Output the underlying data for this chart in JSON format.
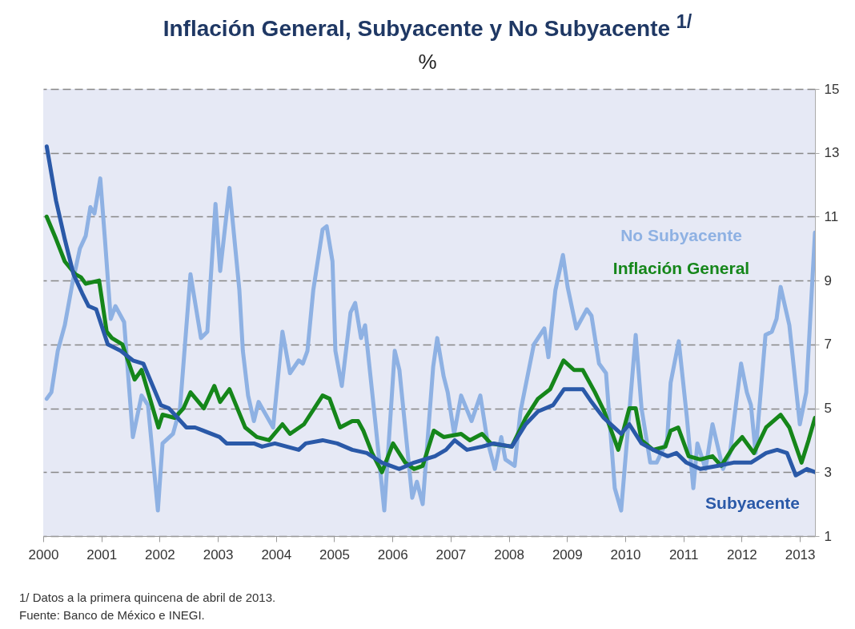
{
  "chart_data": {
    "type": "line",
    "title": "Inflación General, Subyacente y No Subyacente $^{1/}$",
    "subtitle": "%",
    "xlim": [
      2000,
      2013.26
    ],
    "xticks": [
      2000,
      2001,
      2002,
      2003,
      2004,
      2005,
      2006,
      2007,
      2008,
      2009,
      2010,
      2011,
      2012,
      2013
    ],
    "ylim": [
      1,
      15
    ],
    "yticks": [
      1,
      3,
      5,
      7,
      9,
      11,
      13,
      15
    ],
    "grid": "y",
    "legend": false,
    "annotations": [
      "1/ Datos a la primera quincena de abril de 2013.",
      "Fuente: Banco de México e INEGI."
    ],
    "series": [
      {
        "name": "No Subyacente",
        "color": "#8eb1e3",
        "x": [
          2000.06,
          2000.14,
          2000.25,
          2000.37,
          2000.5,
          2000.63,
          2000.73,
          2000.81,
          2000.88,
          2000.98,
          2001.06,
          2001.16,
          2001.24,
          2001.39,
          2001.54,
          2001.69,
          2001.8,
          2001.97,
          2002.05,
          2002.23,
          2002.35,
          2002.53,
          2002.71,
          2002.82,
          2002.96,
          2003.04,
          2003.2,
          2003.37,
          2003.43,
          2003.52,
          2003.62,
          2003.7,
          2003.95,
          2004.11,
          2004.24,
          2004.39,
          2004.46,
          2004.54,
          2004.64,
          2004.8,
          2004.87,
          2004.97,
          2005.02,
          2005.13,
          2005.28,
          2005.36,
          2005.46,
          2005.53,
          2005.71,
          2005.86,
          2006.04,
          2006.12,
          2006.34,
          2006.42,
          2006.52,
          2006.7,
          2006.77,
          2006.88,
          2006.95,
          2007.06,
          2007.18,
          2007.36,
          2007.51,
          2007.63,
          2007.76,
          2007.87,
          2007.94,
          2008.1,
          2008.2,
          2008.43,
          2008.61,
          2008.68,
          2008.8,
          2008.93,
          2009.01,
          2009.16,
          2009.34,
          2009.42,
          2009.55,
          2009.67,
          2009.82,
          2009.93,
          2010.03,
          2010.18,
          2010.28,
          2010.43,
          2010.54,
          2010.72,
          2010.78,
          2010.92,
          2011.06,
          2011.17,
          2011.24,
          2011.38,
          2011.5,
          2011.68,
          2011.8,
          2011.99,
          2012.09,
          2012.16,
          2012.24,
          2012.41,
          2012.52,
          2012.6,
          2012.67,
          2012.82,
          2013.0,
          2013.11,
          2013.26
        ],
        "values": [
          5.3,
          5.5,
          6.8,
          7.6,
          8.9,
          10.0,
          10.4,
          11.3,
          11.1,
          12.2,
          10.3,
          7.8,
          8.2,
          7.7,
          4.1,
          5.4,
          5.1,
          1.8,
          3.9,
          4.2,
          5.0,
          9.2,
          7.2,
          7.4,
          11.4,
          9.3,
          11.9,
          8.7,
          6.8,
          5.4,
          4.6,
          5.2,
          4.4,
          7.4,
          6.1,
          6.5,
          6.4,
          6.8,
          8.7,
          10.6,
          10.7,
          9.6,
          6.8,
          5.7,
          8.0,
          8.3,
          7.2,
          7.6,
          4.5,
          1.8,
          6.8,
          6.2,
          2.2,
          2.7,
          2.0,
          6.3,
          7.2,
          6.0,
          5.5,
          4.2,
          5.4,
          4.6,
          5.4,
          4.0,
          3.1,
          4.1,
          3.4,
          3.2,
          4.9,
          7.0,
          7.5,
          6.6,
          8.7,
          9.8,
          8.8,
          7.5,
          8.1,
          7.9,
          6.4,
          6.1,
          2.5,
          1.8,
          4.0,
          7.3,
          5.0,
          3.3,
          3.3,
          4.0,
          5.8,
          7.1,
          4.7,
          2.5,
          3.9,
          3.1,
          4.5,
          3.1,
          3.6,
          6.4,
          5.5,
          5.1,
          3.6,
          7.3,
          7.4,
          7.8,
          8.8,
          7.6,
          4.5,
          5.5,
          10.5
        ]
      },
      {
        "name": "Inflación General",
        "color": "#15861a",
        "x": [
          2000.06,
          2000.22,
          2000.37,
          2000.55,
          2000.65,
          2000.73,
          2000.96,
          2001.09,
          2001.18,
          2001.36,
          2001.57,
          2001.69,
          2001.98,
          2002.05,
          2002.26,
          2002.41,
          2002.53,
          2002.76,
          2002.94,
          2003.04,
          2003.2,
          2003.47,
          2003.67,
          2003.88,
          2004.11,
          2004.24,
          2004.48,
          2004.8,
          2004.92,
          2005.1,
          2005.31,
          2005.41,
          2005.5,
          2005.65,
          2005.82,
          2006.01,
          2006.22,
          2006.37,
          2006.52,
          2006.71,
          2006.88,
          2007.18,
          2007.33,
          2007.54,
          2007.69,
          2008.05,
          2008.29,
          2008.5,
          2008.71,
          2008.94,
          2009.12,
          2009.27,
          2009.48,
          2009.64,
          2009.88,
          2010.07,
          2010.18,
          2010.28,
          2010.48,
          2010.69,
          2010.78,
          2010.91,
          2011.09,
          2011.29,
          2011.5,
          2011.65,
          2011.86,
          2012.01,
          2012.21,
          2012.42,
          2012.67,
          2012.82,
          2013.03,
          2013.15,
          2013.26
        ],
        "values": [
          11.0,
          10.3,
          9.6,
          9.2,
          9.1,
          8.9,
          9.0,
          7.4,
          7.2,
          7.0,
          5.9,
          6.2,
          4.4,
          4.8,
          4.7,
          5.0,
          5.5,
          5.0,
          5.7,
          5.2,
          5.6,
          4.4,
          4.1,
          4.0,
          4.5,
          4.2,
          4.5,
          5.4,
          5.3,
          4.4,
          4.6,
          4.6,
          4.3,
          3.6,
          3.0,
          3.9,
          3.3,
          3.1,
          3.2,
          4.3,
          4.1,
          4.2,
          4.0,
          4.2,
          3.9,
          3.8,
          4.7,
          5.3,
          5.6,
          6.5,
          6.2,
          6.2,
          5.5,
          4.9,
          3.7,
          5.0,
          5.0,
          4.0,
          3.7,
          3.8,
          4.3,
          4.4,
          3.5,
          3.4,
          3.5,
          3.2,
          3.8,
          4.1,
          3.6,
          4.4,
          4.8,
          4.4,
          3.3,
          4.0,
          4.7
        ]
      },
      {
        "name": "Subyacente",
        "color": "#2a59a8",
        "x": [
          2000.06,
          2000.22,
          2000.37,
          2000.52,
          2000.67,
          2000.78,
          2000.91,
          2001.11,
          2001.33,
          2001.54,
          2001.72,
          2002.02,
          2002.16,
          2002.46,
          2002.61,
          2003.03,
          2003.15,
          2003.43,
          2003.62,
          2003.76,
          2003.98,
          2004.39,
          2004.51,
          2004.8,
          2005.05,
          2005.31,
          2005.56,
          2005.82,
          2006.12,
          2006.37,
          2006.73,
          2006.92,
          2007.07,
          2007.28,
          2007.54,
          2007.74,
          2008.05,
          2008.29,
          2008.5,
          2008.76,
          2008.95,
          2009.27,
          2009.42,
          2009.63,
          2009.93,
          2010.07,
          2010.28,
          2010.48,
          2010.73,
          2010.88,
          2011.05,
          2011.29,
          2011.6,
          2011.86,
          2012.16,
          2012.42,
          2012.61,
          2012.78,
          2012.93,
          2013.12,
          2013.26
        ],
        "values": [
          13.2,
          11.5,
          10.3,
          9.2,
          8.6,
          8.2,
          8.1,
          7.0,
          6.8,
          6.5,
          6.4,
          5.1,
          5.0,
          4.4,
          4.4,
          4.1,
          3.9,
          3.9,
          3.9,
          3.8,
          3.9,
          3.7,
          3.9,
          4.0,
          3.9,
          3.7,
          3.6,
          3.3,
          3.1,
          3.3,
          3.5,
          3.7,
          4.0,
          3.7,
          3.8,
          3.9,
          3.8,
          4.5,
          4.9,
          5.1,
          5.6,
          5.6,
          5.2,
          4.7,
          4.2,
          4.5,
          3.9,
          3.7,
          3.5,
          3.6,
          3.3,
          3.1,
          3.2,
          3.3,
          3.3,
          3.6,
          3.7,
          3.6,
          2.9,
          3.1,
          3.0
        ]
      }
    ]
  }
}
